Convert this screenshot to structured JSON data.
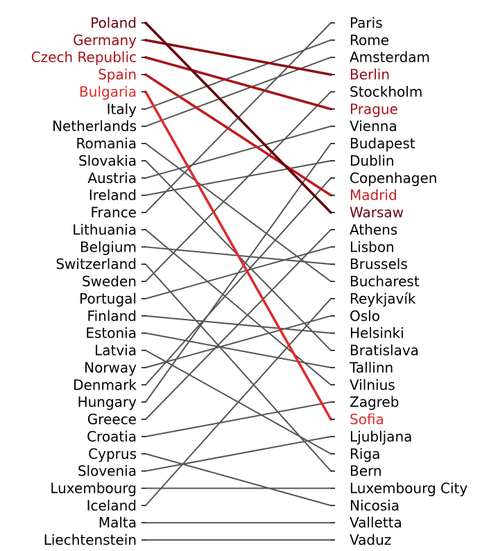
{
  "chart_data": {
    "type": "slope",
    "title": "",
    "left_labels": [
      "Poland",
      "Germany",
      "Czech Republic",
      "Spain",
      "Bulgaria",
      "Italy",
      "Netherlands",
      "Romania",
      "Slovakia",
      "Austria",
      "Ireland",
      "France",
      "Lithuania",
      "Belgium",
      "Switzerland",
      "Sweden",
      "Portugal",
      "Finland",
      "Estonia",
      "Latvia",
      "Norway",
      "Denmark",
      "Hungary",
      "Greece",
      "Croatia",
      "Cyprus",
      "Slovenia",
      "Luxembourg",
      "Iceland",
      "Malta",
      "Liechtenstein"
    ],
    "right_labels": [
      "Paris",
      "Rome",
      "Amsterdam",
      "Berlin",
      "Stockholm",
      "Prague",
      "Vienna",
      "Budapest",
      "Dublin",
      "Copenhagen",
      "Madrid",
      "Warsaw",
      "Athens",
      "Lisbon",
      "Brussels",
      "Bucharest",
      "Reykjavík",
      "Oslo",
      "Helsinki",
      "Bratislava",
      "Tallinn",
      "Vilnius",
      "Zagreb",
      "Sofia",
      "Ljubljana",
      "Riga",
      "Bern",
      "Luxembourg City",
      "Nicosia",
      "Valletta",
      "Vaduz"
    ],
    "pairs": [
      {
        "from": "Poland",
        "to": "Warsaw",
        "highlight": true,
        "color": "#67000d"
      },
      {
        "from": "Germany",
        "to": "Berlin",
        "highlight": true,
        "color": "#8f0f14"
      },
      {
        "from": "Czech Republic",
        "to": "Prague",
        "highlight": true,
        "color": "#a6141b"
      },
      {
        "from": "Spain",
        "to": "Madrid",
        "highlight": true,
        "color": "#c21b1f"
      },
      {
        "from": "Bulgaria",
        "to": "Sofia",
        "highlight": true,
        "color": "#dd2b2b"
      },
      {
        "from": "Italy",
        "to": "Rome",
        "highlight": false,
        "color": "#555555"
      },
      {
        "from": "Netherlands",
        "to": "Amsterdam",
        "highlight": false,
        "color": "#555555"
      },
      {
        "from": "Romania",
        "to": "Bucharest",
        "highlight": false,
        "color": "#555555"
      },
      {
        "from": "Slovakia",
        "to": "Bratislava",
        "highlight": false,
        "color": "#555555"
      },
      {
        "from": "Austria",
        "to": "Vienna",
        "highlight": false,
        "color": "#555555"
      },
      {
        "from": "Ireland",
        "to": "Dublin",
        "highlight": false,
        "color": "#555555"
      },
      {
        "from": "France",
        "to": "Paris",
        "highlight": false,
        "color": "#555555"
      },
      {
        "from": "Lithuania",
        "to": "Vilnius",
        "highlight": false,
        "color": "#555555"
      },
      {
        "from": "Belgium",
        "to": "Brussels",
        "highlight": false,
        "color": "#555555"
      },
      {
        "from": "Switzerland",
        "to": "Bern",
        "highlight": false,
        "color": "#555555"
      },
      {
        "from": "Sweden",
        "to": "Stockholm",
        "highlight": false,
        "color": "#555555"
      },
      {
        "from": "Portugal",
        "to": "Lisbon",
        "highlight": false,
        "color": "#555555"
      },
      {
        "from": "Finland",
        "to": "Helsinki",
        "highlight": false,
        "color": "#555555"
      },
      {
        "from": "Estonia",
        "to": "Tallinn",
        "highlight": false,
        "color": "#555555"
      },
      {
        "from": "Latvia",
        "to": "Riga",
        "highlight": false,
        "color": "#555555"
      },
      {
        "from": "Norway",
        "to": "Oslo",
        "highlight": false,
        "color": "#555555"
      },
      {
        "from": "Denmark",
        "to": "Copenhagen",
        "highlight": false,
        "color": "#555555"
      },
      {
        "from": "Hungary",
        "to": "Budapest",
        "highlight": false,
        "color": "#555555"
      },
      {
        "from": "Greece",
        "to": "Athens",
        "highlight": false,
        "color": "#555555"
      },
      {
        "from": "Croatia",
        "to": "Zagreb",
        "highlight": false,
        "color": "#555555"
      },
      {
        "from": "Cyprus",
        "to": "Nicosia",
        "highlight": false,
        "color": "#555555"
      },
      {
        "from": "Slovenia",
        "to": "Ljubljana",
        "highlight": false,
        "color": "#555555"
      },
      {
        "from": "Luxembourg",
        "to": "Luxembourg City",
        "highlight": false,
        "color": "#555555"
      },
      {
        "from": "Iceland",
        "to": "Reykjavík",
        "highlight": false,
        "color": "#555555"
      },
      {
        "from": "Malta",
        "to": "Valletta",
        "highlight": false,
        "color": "#555555"
      },
      {
        "from": "Liechtenstein",
        "to": "Vaduz",
        "highlight": false,
        "color": "#555555"
      }
    ]
  }
}
